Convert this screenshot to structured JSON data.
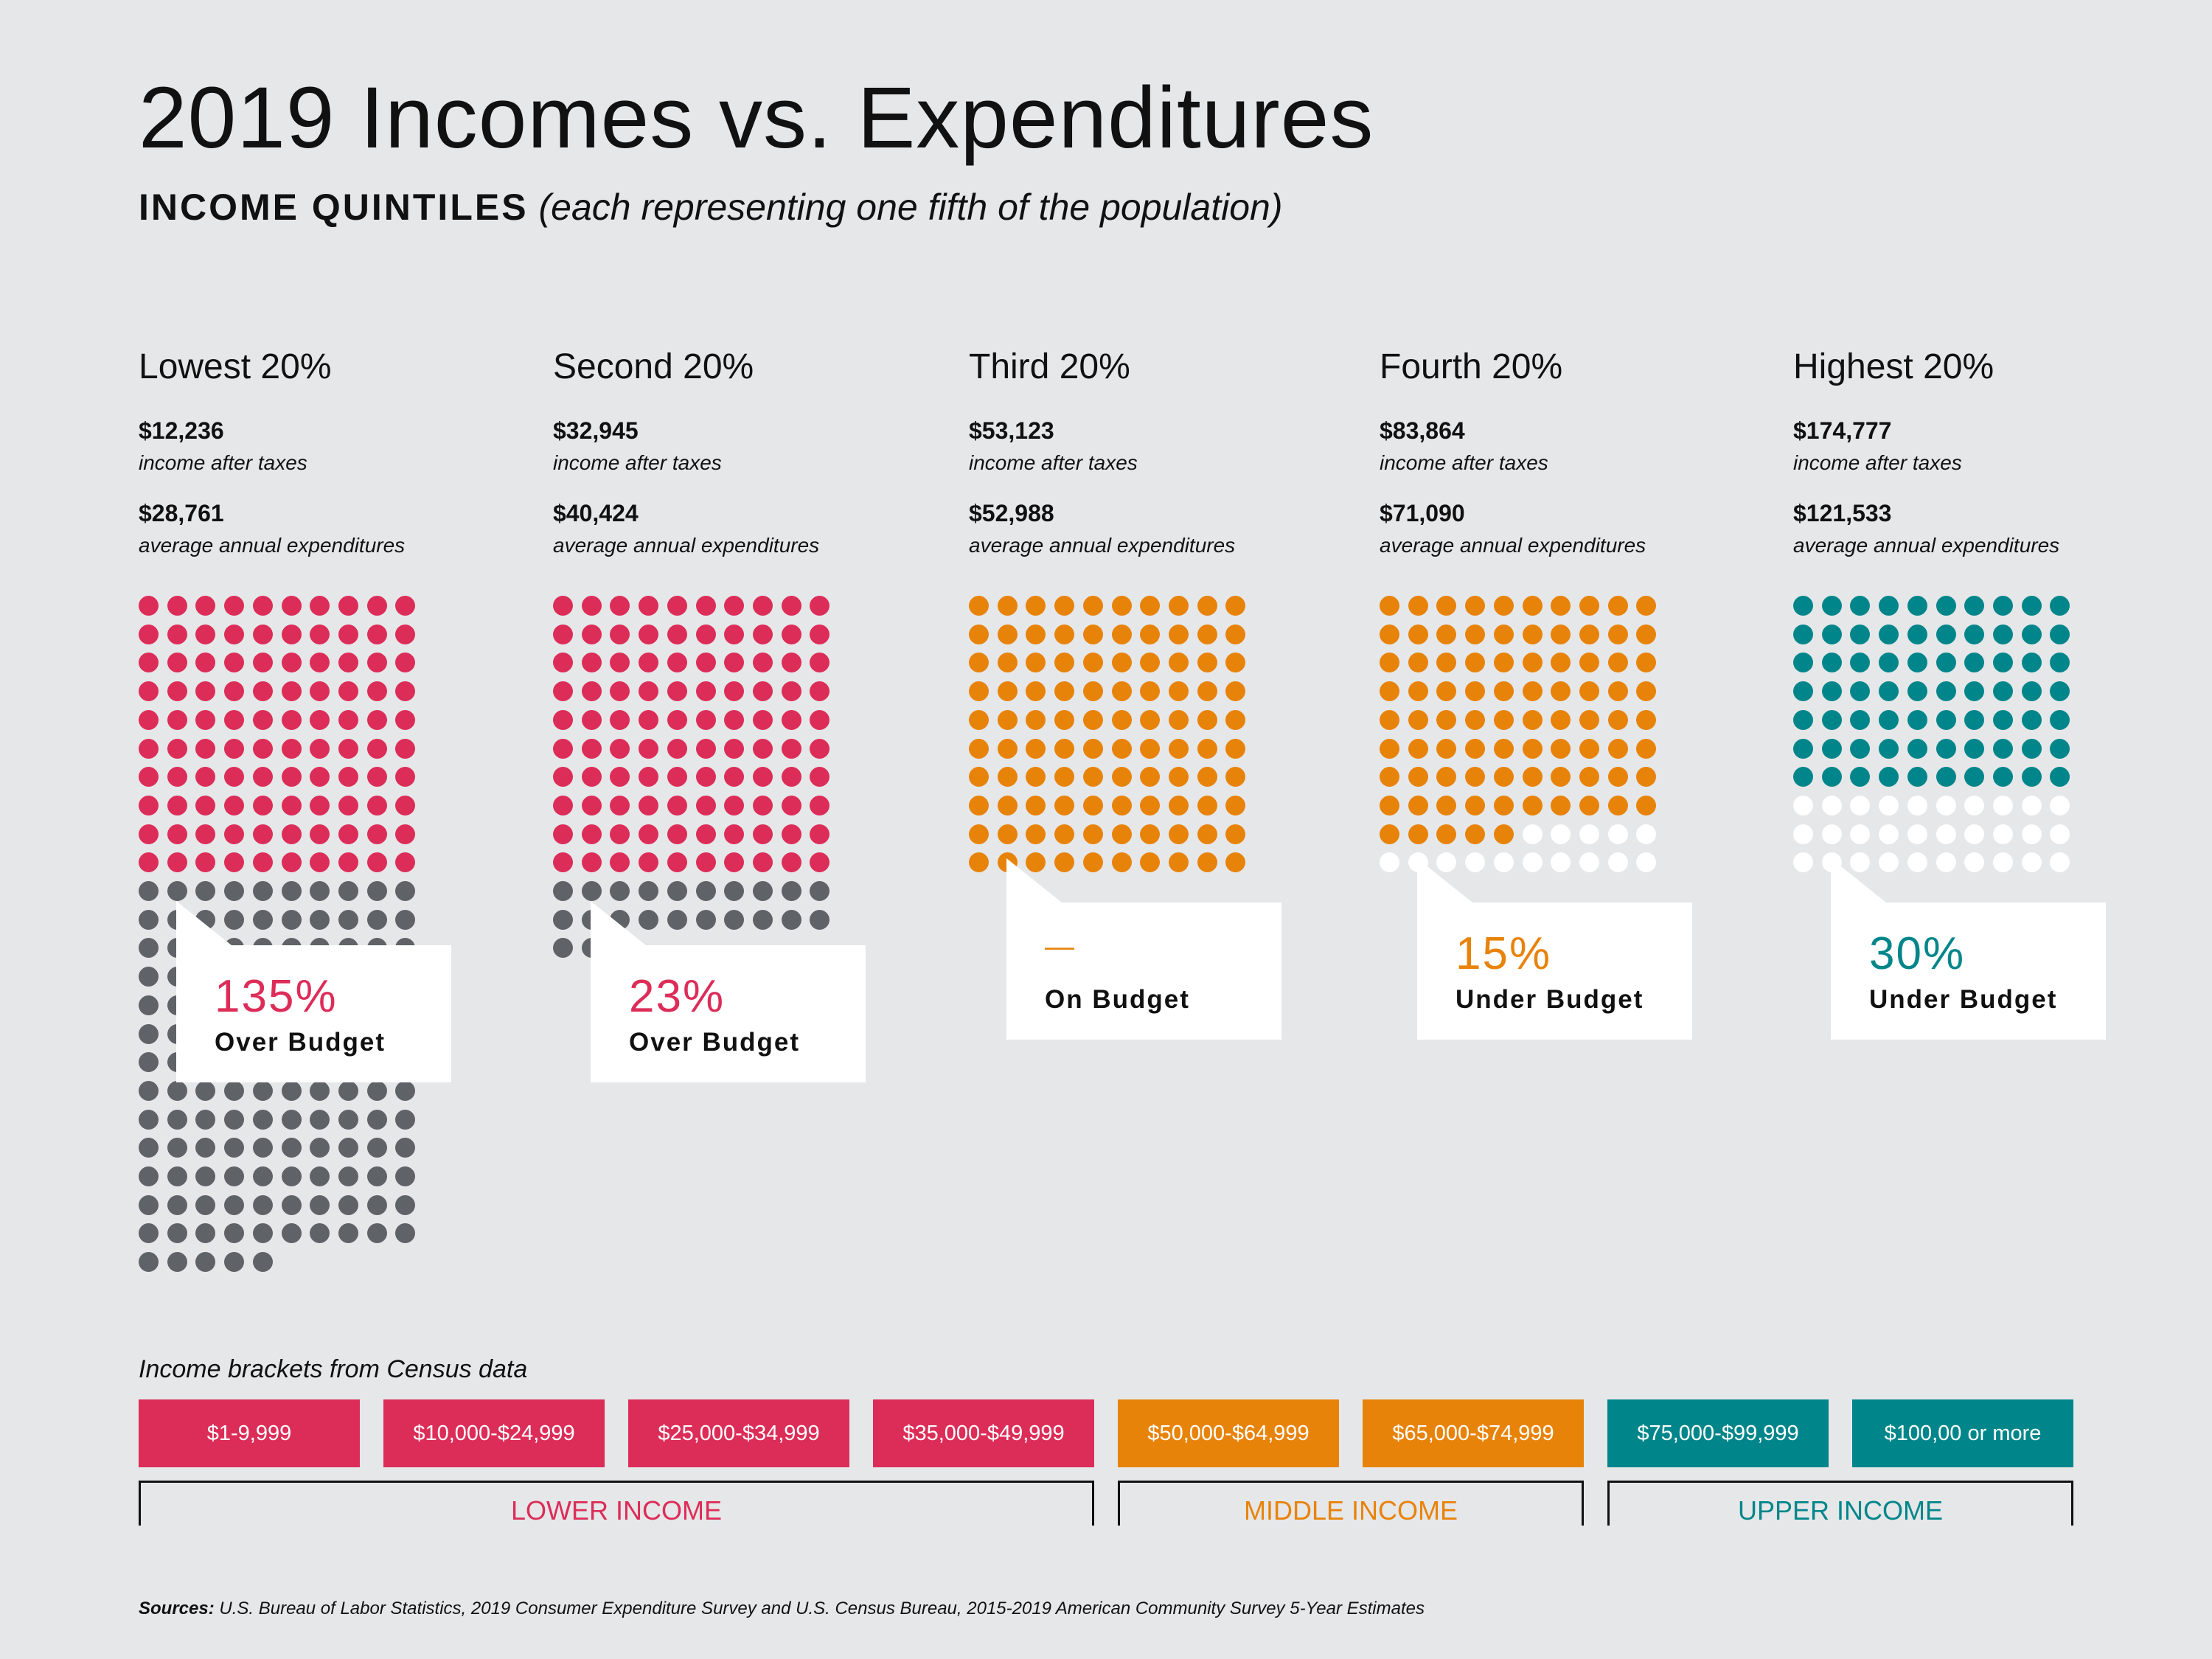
{
  "title": "2019 Incomes vs. Expenditures",
  "subtitle_bold": "INCOME QUINTILES",
  "subtitle_italic": "(each representing one fifth of the population)",
  "colors": {
    "red": "#dc2d58",
    "gray": "#5f6266",
    "orange": "#e8830a",
    "teal": "#00868a",
    "white": "#ffffff",
    "background": "#e6e7e9"
  },
  "chart_data": {
    "type": "dot-matrix",
    "dots_per_row": 10,
    "quintiles": [
      {
        "name": "Lowest 20%",
        "income": "$12,236",
        "income_label": "income after taxes",
        "expenditure": "$28,761",
        "expenditure_label": "average annual expenditures",
        "expenditure_pct_of_income": 235,
        "percent": "135%",
        "status": "Over Budget",
        "color": "#dc2d58"
      },
      {
        "name": "Second 20%",
        "income": "$32,945",
        "income_label": "income after taxes",
        "expenditure": "$40,424",
        "expenditure_label": "average annual expenditures",
        "expenditure_pct_of_income": 123,
        "percent": "23%",
        "status": "Over Budget",
        "color": "#dc2d58"
      },
      {
        "name": "Third 20%",
        "income": "$53,123",
        "income_label": "income after taxes",
        "expenditure": "$52,988",
        "expenditure_label": "average annual expenditures",
        "expenditure_pct_of_income": 100,
        "percent": "—",
        "status": "On Budget",
        "color": "#e8830a"
      },
      {
        "name": "Fourth 20%",
        "income": "$83,864",
        "income_label": "income after taxes",
        "expenditure": "$71,090",
        "expenditure_label": "average annual expenditures",
        "expenditure_pct_of_income": 85,
        "percent": "15%",
        "status": "Under Budget",
        "color": "#e8830a"
      },
      {
        "name": "Highest 20%",
        "income": "$174,777",
        "income_label": "income after taxes",
        "expenditure": "$121,533",
        "expenditure_label": "average annual expenditures",
        "expenditure_pct_of_income": 70,
        "percent": "30%",
        "status": "Under Budget",
        "color": "#00868a"
      }
    ]
  },
  "brackets_label": "Income brackets from Census data",
  "brackets": [
    {
      "label": "$1-9,999",
      "color": "#dc2d58"
    },
    {
      "label": "$10,000-$24,999",
      "color": "#dc2d58"
    },
    {
      "label": "$25,000-$34,999",
      "color": "#dc2d58"
    },
    {
      "label": "$35,000-$49,999",
      "color": "#dc2d58"
    },
    {
      "label": "$50,000-$64,999",
      "color": "#e8830a"
    },
    {
      "label": "$65,000-$74,999",
      "color": "#e8830a"
    },
    {
      "label": "$75,000-$99,999",
      "color": "#00868a"
    },
    {
      "label": "$100,00 or more",
      "color": "#00868a"
    }
  ],
  "groups": [
    {
      "label": "LOWER INCOME",
      "color": "#dc2d58"
    },
    {
      "label": "MIDDLE INCOME",
      "color": "#e8830a"
    },
    {
      "label": "UPPER INCOME",
      "color": "#00868a"
    }
  ],
  "sources_bold": "Sources:",
  "sources_text": " U.S. Bureau of Labor Statistics, 2019 Consumer Expenditure Survey and U.S. Census Bureau, 2015-2019 American Community Survey 5-Year Estimates"
}
